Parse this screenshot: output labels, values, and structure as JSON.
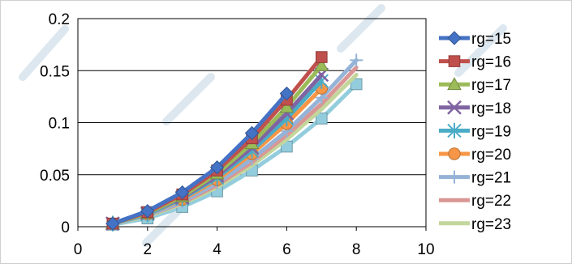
{
  "chart_data": {
    "type": "line",
    "title": "",
    "xlabel": "",
    "ylabel": "",
    "xlim": [
      0,
      10
    ],
    "ylim": [
      0,
      0.2
    ],
    "xticks": [
      0,
      2,
      4,
      6,
      8,
      10
    ],
    "yticks": [
      0,
      0.05,
      0.1,
      0.15,
      0.2
    ],
    "xtick_labels": [
      "0",
      "2",
      "4",
      "6",
      "8",
      "10"
    ],
    "ytick_labels": [
      "0",
      "0.05",
      "0.1",
      "0.15",
      "0.2"
    ],
    "grid": "horizontal",
    "legend_position": "right",
    "series": [
      {
        "name": "rg=15",
        "color": "#4472C4",
        "marker": "diamond",
        "x": [
          1,
          2,
          3,
          4,
          5,
          6
        ],
        "y": [
          0.003,
          0.015,
          0.033,
          0.057,
          0.09,
          0.128
        ]
      },
      {
        "name": "rg=16",
        "color": "#C0504D",
        "marker": "square",
        "x": [
          1,
          2,
          3,
          4,
          5,
          6,
          7
        ],
        "y": [
          0.003,
          0.014,
          0.031,
          0.054,
          0.085,
          0.122,
          0.163
        ]
      },
      {
        "name": "rg=17",
        "color": "#9BBB59",
        "marker": "triangle",
        "x": [
          1,
          2,
          3,
          4,
          5,
          6,
          7
        ],
        "y": [
          0.003,
          0.013,
          0.029,
          0.051,
          0.08,
          0.115,
          0.155
        ]
      },
      {
        "name": "rg=18",
        "color": "#8064A2",
        "marker": "x",
        "x": [
          1,
          2,
          3,
          4,
          5,
          6,
          7
        ],
        "y": [
          0.003,
          0.013,
          0.028,
          0.049,
          0.076,
          0.109,
          0.146
        ]
      },
      {
        "name": "rg=19",
        "color": "#4BACC6",
        "marker": "star",
        "x": [
          1,
          2,
          3,
          4,
          5,
          6,
          7
        ],
        "y": [
          0.003,
          0.012,
          0.027,
          0.047,
          0.073,
          0.104,
          0.14
        ]
      },
      {
        "name": "rg=20",
        "color": "#F79646",
        "marker": "circle",
        "x": [
          1,
          2,
          3,
          4,
          5,
          6,
          7
        ],
        "y": [
          0.003,
          0.012,
          0.026,
          0.045,
          0.07,
          0.099,
          0.133
        ]
      },
      {
        "name": "rg=21",
        "color": "#95B3D7",
        "marker": "plus",
        "x": [
          1,
          2,
          3,
          4,
          5,
          6,
          7,
          8
        ],
        "y": [
          0.003,
          0.011,
          0.024,
          0.042,
          0.065,
          0.092,
          0.124,
          0.16
        ]
      },
      {
        "name": "rg=22",
        "color": "#D99694",
        "marker": "none",
        "x": [
          1,
          2,
          3,
          4,
          5,
          6,
          7,
          8
        ],
        "y": [
          0.003,
          0.011,
          0.023,
          0.04,
          0.062,
          0.088,
          0.118,
          0.153
        ]
      },
      {
        "name": "rg=23",
        "color": "#C3D69B",
        "marker": "none",
        "x": [
          1,
          2,
          3,
          4,
          5,
          6,
          7,
          8
        ],
        "y": [
          0.003,
          0.01,
          0.022,
          0.038,
          0.059,
          0.084,
          0.113,
          0.146
        ]
      },
      {
        "name": "",
        "color": "#93CDDD",
        "marker": "square",
        "x": [
          1,
          2,
          3,
          4,
          5,
          6,
          7,
          8
        ],
        "y": [
          0.002,
          0.008,
          0.019,
          0.034,
          0.054,
          0.077,
          0.104,
          0.137
        ]
      }
    ]
  }
}
